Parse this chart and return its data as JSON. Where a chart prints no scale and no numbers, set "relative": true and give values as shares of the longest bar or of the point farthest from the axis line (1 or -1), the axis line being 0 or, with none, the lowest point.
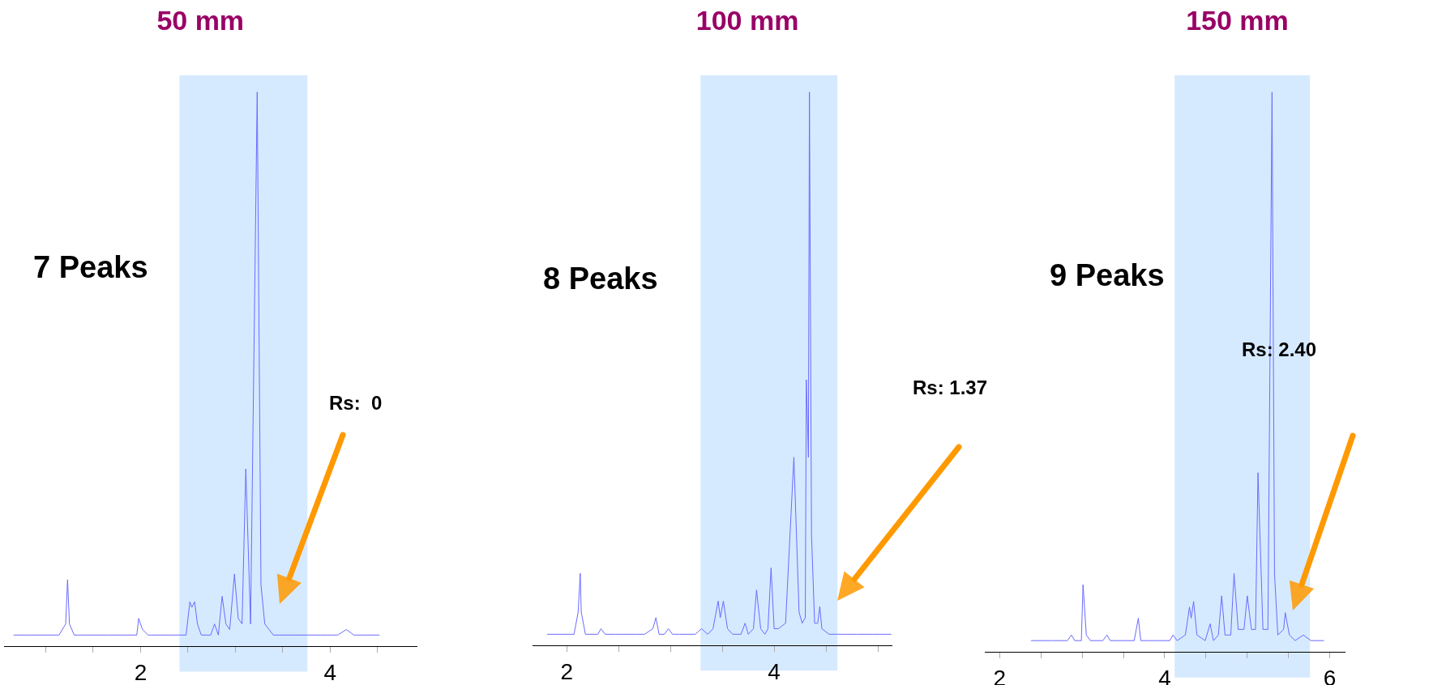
{
  "chart_data": [
    {
      "type": "line",
      "relative": true,
      "title": "50 mm",
      "xlim": [
        0.56,
        4.92
      ],
      "xticks": [
        {
          "value": 1,
          "label": null
        },
        {
          "value": 1.5,
          "label": null
        },
        2,
        {
          "value": 2.5,
          "label": null
        },
        {
          "value": 3,
          "label": null
        },
        {
          "value": 3.5,
          "label": null
        },
        4,
        {
          "value": 4.5,
          "label": null
        }
      ],
      "bands": [
        {
          "axis": "x",
          "from": 2.41,
          "to": 3.76,
          "color": "#d6eaff"
        }
      ],
      "annotations": [
        "7 Peaks",
        "Rs:  0"
      ],
      "series": [
        {
          "color": "#6a6aff",
          "x": [
            0.66,
            0.79,
            0.83,
            1.14,
            1.21,
            1.23,
            1.25,
            1.3,
            1.34,
            1.38,
            1.65,
            1.8,
            1.86,
            1.96,
            1.98,
            2.02,
            2.08,
            2.11,
            2.35,
            2.43,
            2.48,
            2.52,
            2.54,
            2.57,
            2.6,
            2.64,
            2.74,
            2.78,
            2.82,
            2.86,
            2.9,
            2.94,
            2.99,
            3.03,
            3.07,
            3.11,
            3.16,
            3.23,
            3.27,
            3.31,
            3.4,
            3.47,
            3.63,
            3.75,
            3.9,
            4.02,
            4.08,
            4.17,
            4.25,
            4.37,
            4.52
          ],
          "values": [
            0.02,
            0.02,
            0.02,
            0.02,
            0.04,
            0.12,
            0.04,
            0.02,
            0.02,
            0.02,
            0.02,
            0.02,
            0.02,
            0.02,
            0.05,
            0.03,
            0.02,
            0.02,
            0.02,
            0.02,
            0.02,
            0.08,
            0.07,
            0.08,
            0.04,
            0.02,
            0.02,
            0.04,
            0.02,
            0.09,
            0.04,
            0.03,
            0.13,
            0.05,
            0.04,
            0.32,
            0.04,
            1,
            0.11,
            0.04,
            0.02,
            0.02,
            0.02,
            0.02,
            0.02,
            0.02,
            0.02,
            0.03,
            0.02,
            0.02,
            0.02
          ]
        }
      ]
    },
    {
      "type": "line",
      "relative": true,
      "title": "100 mm",
      "xlim": [
        1.67,
        5.14
      ],
      "xticks": [
        2,
        {
          "value": 2.5,
          "label": null
        },
        {
          "value": 3,
          "label": null
        },
        {
          "value": 3.5,
          "label": null
        },
        4,
        {
          "value": 4.5,
          "label": null
        },
        {
          "value": 5,
          "label": null
        }
      ],
      "bands": [
        {
          "axis": "x",
          "from": 3.29,
          "to": 4.61,
          "color": "#d6eaff"
        }
      ],
      "annotations": [
        "8 Peaks",
        "Rs: 1.37"
      ],
      "series": [
        {
          "color": "#6a6aff",
          "x": [
            1.81,
            2.07,
            2.11,
            2.13,
            2.14,
            2.18,
            2.3,
            2.33,
            2.37,
            2.47,
            2.49,
            2.52,
            2.66,
            2.75,
            2.83,
            2.86,
            2.89,
            2.94,
            2.98,
            3.02,
            3.05,
            3.09,
            3.24,
            3.3,
            3.36,
            3.41,
            3.46,
            3.48,
            3.51,
            3.55,
            3.6,
            3.68,
            3.72,
            3.75,
            3.8,
            3.83,
            3.87,
            3.91,
            3.94,
            3.97,
            4,
            4.04,
            4.11,
            4.19,
            4.24,
            4.27,
            4.3,
            4.31,
            4.33,
            4.34,
            4.36,
            4.39,
            4.42,
            4.44,
            4.46,
            4.53,
            4.61,
            4.68,
            4.8,
            4.95,
            5.08,
            5.13
          ],
          "values": [
            0.02,
            0.02,
            0.06,
            0.13,
            0.06,
            0.02,
            0.02,
            0.03,
            0.02,
            0.02,
            0.02,
            0.02,
            0.02,
            0.02,
            0.03,
            0.05,
            0.02,
            0.02,
            0.03,
            0.02,
            0.02,
            0.02,
            0.02,
            0.03,
            0.02,
            0.03,
            0.08,
            0.05,
            0.08,
            0.03,
            0.02,
            0.02,
            0.04,
            0.02,
            0.03,
            0.1,
            0.03,
            0.02,
            0.03,
            0.14,
            0.03,
            0.03,
            0.04,
            0.34,
            0.06,
            0.04,
            0.05,
            0.48,
            0.34,
            1,
            0.2,
            0.04,
            0.04,
            0.07,
            0.03,
            0.02,
            0.02,
            0.02,
            0.02,
            0.02,
            0.02,
            0.02
          ]
        }
      ]
    },
    {
      "type": "line",
      "relative": true,
      "title": "150 mm",
      "xlim": [
        1.82,
        6.19
      ],
      "xticks": [
        2,
        {
          "value": 2.5,
          "label": null
        },
        {
          "value": 3,
          "label": null
        },
        {
          "value": 3.5,
          "label": null
        },
        4,
        {
          "value": 4.5,
          "label": null
        },
        {
          "value": 5,
          "label": null
        },
        {
          "value": 5.5,
          "label": null
        },
        6
      ],
      "bands": [
        {
          "axis": "x",
          "from": 4.12,
          "to": 5.76,
          "color": "#d6eaff"
        }
      ],
      "annotations": [
        "9 Peaks",
        "Rs: 2.40"
      ],
      "series": [
        {
          "color": "#6a6aff",
          "x": [
            2.38,
            2.63,
            2.82,
            2.87,
            2.91,
            2.99,
            3.01,
            3.05,
            3.1,
            3.25,
            3.3,
            3.34,
            3.49,
            3.63,
            3.68,
            3.71,
            3.8,
            3.89,
            3.94,
            4.06,
            4.1,
            4.15,
            4.25,
            4.3,
            4.32,
            4.35,
            4.39,
            4.49,
            4.55,
            4.59,
            4.65,
            4.69,
            4.73,
            4.8,
            4.84,
            4.89,
            4.96,
            5,
            5.05,
            5.1,
            5.13,
            5.19,
            5.25,
            5.3,
            5.33,
            5.37,
            5.44,
            5.46,
            5.51,
            5.58,
            5.68,
            5.77,
            5.93
          ],
          "values": [
            0.02,
            0.02,
            0.02,
            0.03,
            0.02,
            0.02,
            0.12,
            0.03,
            0.02,
            0.02,
            0.03,
            0.02,
            0.02,
            0.02,
            0.06,
            0.02,
            0.02,
            0.02,
            0.02,
            0.02,
            0.03,
            0.02,
            0.03,
            0.08,
            0.06,
            0.09,
            0.03,
            0.02,
            0.05,
            0.02,
            0.03,
            0.1,
            0.03,
            0.03,
            0.14,
            0.04,
            0.04,
            0.1,
            0.04,
            0.04,
            0.32,
            0.04,
            0.04,
            1,
            0.14,
            0.03,
            0.04,
            0.07,
            0.03,
            0.02,
            0.03,
            0.02,
            0.02
          ]
        }
      ]
    }
  ]
}
